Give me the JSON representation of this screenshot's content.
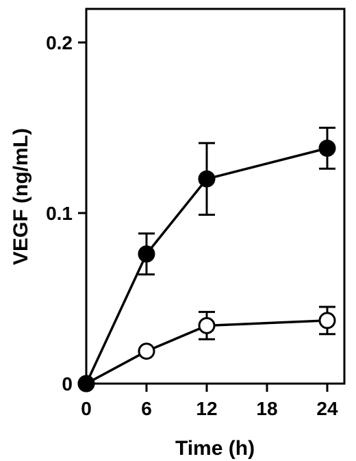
{
  "chart_data": {
    "type": "line",
    "title": "",
    "xlabel": "Time (h)",
    "ylabel": "VEGF (ng/mL)",
    "x": [
      0,
      6,
      12,
      24
    ],
    "xlim": [
      0,
      26
    ],
    "ylim": [
      0,
      0.2
    ],
    "x_ticks": [
      0,
      6,
      12,
      18,
      24
    ],
    "x_tick_labels": [
      "0",
      "6",
      "12",
      "18",
      "24"
    ],
    "y_ticks": [
      0,
      0.1,
      0.2
    ],
    "y_tick_labels": [
      "0",
      "0.1",
      "0.2"
    ],
    "grid": false,
    "legend": "none",
    "series": [
      {
        "marker": "filled-circle",
        "color": "#000000",
        "values": [
          0,
          0.076,
          0.12,
          0.138
        ],
        "errors": [
          0,
          0.012,
          0.021,
          0.012
        ]
      },
      {
        "marker": "open-circle",
        "color": "#000000",
        "values": [
          0,
          0.019,
          0.034,
          0.037
        ],
        "errors": [
          0,
          0,
          0.008,
          0.008
        ]
      }
    ]
  }
}
